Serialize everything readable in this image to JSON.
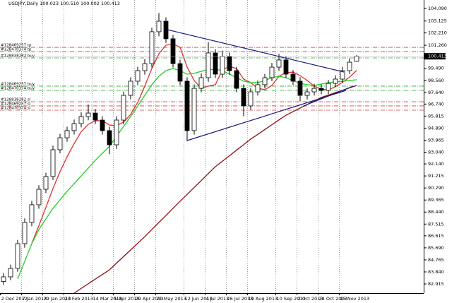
{
  "chart_data": {
    "type": "candlestick",
    "title": "USDJPY,Daily 100.023 100.510 100.002 100.413",
    "categories": [
      "2 Dec 2012",
      null,
      null,
      "7 Jan 2013",
      null,
      null,
      "29 Jan 2013",
      null,
      null,
      "20 Feb 2013",
      null,
      null,
      null,
      "14 Mar 2013",
      null,
      null,
      "5 Apr 2013",
      null,
      null,
      "29 Apr 2013",
      null,
      null,
      "21 May 2013",
      null,
      null,
      null,
      "12 Jun 2013",
      null,
      null,
      "4 Jul 2013",
      null,
      null,
      "26 Jul 2013",
      null,
      null,
      "19 Aug 2013",
      null,
      null,
      null,
      "10 Sep 2013",
      null,
      null,
      "2 Oct 2013",
      null,
      null,
      "24 Oct 2013",
      null,
      null,
      "15 Nov 2013",
      null,
      null
    ],
    "open": [
      83.1,
      83.46,
      84.11,
      86.01,
      87.64,
      89.0,
      90.19,
      91.17,
      93.23,
      94.15,
      94.7,
      95.24,
      95.78,
      96.05,
      95.51,
      94.7,
      93.61,
      95.51,
      97.41,
      98.5,
      99.31,
      99.85,
      102.3,
      103.11,
      101.76,
      99.85,
      98.5,
      94.7,
      97.95,
      98.77,
      100.67,
      99.04,
      100.4,
      99.31,
      97.95,
      96.6,
      97.68,
      98.23,
      98.77,
      99.58,
      100.13,
      99.04,
      98.5,
      97.41,
      97.68,
      97.95,
      97.79,
      98.33,
      98.66,
      99.31,
      100.023
    ],
    "high": [
      83.75,
      84.4,
      86.3,
      87.95,
      89.3,
      90.5,
      91.45,
      93.55,
      94.45,
      95.0,
      95.55,
      96.1,
      96.7,
      96.35,
      95.8,
      95.0,
      95.8,
      97.7,
      98.8,
      99.6,
      100.2,
      102.6,
      103.74,
      103.4,
      102.05,
      100.15,
      98.8,
      98.25,
      99.1,
      101.5,
      100.95,
      100.85,
      100.7,
      99.6,
      98.25,
      97.95,
      98.55,
      99.05,
      99.9,
      100.6,
      100.4,
      99.35,
      98.8,
      97.95,
      98.3,
      98.25,
      98.6,
      98.95,
      99.6,
      100.25,
      100.51
    ],
    "low": [
      82.85,
      83.2,
      83.85,
      85.7,
      87.35,
      88.7,
      89.9,
      90.9,
      92.95,
      93.85,
      94.4,
      94.95,
      95.5,
      95.2,
      94.4,
      92.9,
      93.3,
      95.2,
      97.1,
      98.2,
      99.0,
      99.55,
      101.95,
      101.45,
      99.55,
      98.2,
      93.9,
      94.4,
      97.65,
      98.45,
      98.75,
      98.75,
      99.0,
      97.65,
      95.8,
      96.3,
      97.4,
      97.95,
      98.5,
      99.3,
      98.75,
      98.2,
      96.95,
      97.1,
      97.4,
      97.5,
      97.5,
      98.05,
      98.4,
      99.05,
      100.002
    ],
    "close": [
      83.46,
      84.11,
      86.01,
      87.64,
      89.0,
      90.19,
      91.17,
      93.23,
      94.15,
      94.7,
      95.24,
      95.78,
      96.05,
      95.51,
      94.7,
      93.61,
      95.51,
      97.41,
      98.5,
      99.31,
      99.85,
      102.3,
      103.11,
      101.76,
      99.85,
      98.5,
      94.7,
      97.95,
      98.77,
      100.67,
      99.04,
      100.4,
      99.31,
      97.95,
      96.6,
      97.68,
      98.23,
      98.77,
      99.58,
      100.13,
      99.04,
      98.5,
      97.41,
      97.68,
      97.95,
      97.79,
      98.33,
      98.66,
      99.31,
      99.96,
      100.413
    ],
    "series": [
      {
        "color": "#e03030",
        "values": [
          null,
          null,
          null,
          null,
          86.04,
          87.39,
          88.8,
          90.25,
          91.55,
          92.69,
          93.7,
          94.62,
          95.18,
          95.46,
          95.46,
          95.13,
          95.08,
          95.35,
          95.95,
          96.87,
          98.12,
          99.47,
          100.61,
          101.27,
          101.37,
          101.1,
          99.58,
          98.55,
          97.95,
          98.12,
          98.23,
          99.37,
          99.64,
          99.47,
          98.66,
          98.39,
          97.95,
          97.85,
          98.17,
          98.88,
          99.15,
          99.2,
          98.93,
          98.55,
          98.12,
          97.87,
          97.83,
          98.08,
          98.41,
          98.81,
          99.33
        ]
      },
      {
        "color": "#22cc22",
        "values": [
          null,
          null,
          83.3,
          84.65,
          86.01,
          87.1,
          87.91,
          88.73,
          89.38,
          90.03,
          90.63,
          91.22,
          91.82,
          92.42,
          92.96,
          93.5,
          94.26,
          95.02,
          95.78,
          96.6,
          97.41,
          98.23,
          98.88,
          99.31,
          99.47,
          99.31,
          99.04,
          99.1,
          99.26,
          99.37,
          99.42,
          99.31,
          99.04,
          98.77,
          98.5,
          98.39,
          98.39,
          98.55,
          98.77,
          98.88,
          98.77,
          98.55,
          98.33,
          98.23,
          98.17,
          98.28,
          98.39,
          98.44,
          98.5,
          98.55,
          98.61
        ]
      },
      {
        "color": "#8b1010",
        "values": [
          null,
          null,
          null,
          null,
          null,
          null,
          null,
          null,
          null,
          null,
          82.21,
          82.57,
          82.93,
          83.29,
          83.64,
          84.0,
          84.51,
          85.02,
          85.53,
          86.04,
          86.55,
          87.1,
          87.64,
          88.18,
          88.73,
          89.27,
          89.8,
          90.33,
          90.86,
          91.4,
          91.93,
          92.35,
          92.77,
          93.2,
          93.62,
          94.05,
          94.41,
          94.78,
          95.15,
          95.52,
          95.89,
          96.16,
          96.43,
          96.71,
          96.98,
          97.25,
          97.43,
          97.62,
          97.8,
          97.99,
          98.17
        ]
      }
    ],
    "levels": [
      {
        "label": "#128469257 tp",
        "value": 101.1,
        "color": "#d04040"
      },
      {
        "label": "#128470374 tp",
        "value": 100.78,
        "color": "#d04040"
      },
      {
        "label": "#128838282 buy",
        "value": 100.29,
        "color": "#30a030"
      },
      {
        "label": "#128469257 buy",
        "value": 98.12,
        "color": "#30a030"
      },
      {
        "label": "#128470374 buy",
        "value": 97.79,
        "color": "#30a030"
      },
      {
        "label": "#128838282 sl",
        "value": 96.92,
        "color": "#d04040"
      },
      {
        "label": "#128469257 sl",
        "value": 96.6,
        "color": "#d04040"
      },
      {
        "label": "#128470374 sl",
        "value": 96.27,
        "color": "#d04040"
      }
    ],
    "last_price": 100.413,
    "ylim": [
      82.21,
      104.74
    ],
    "yticks": [
      {
        "value": 104.09,
        "label": "104.090"
      },
      103.125,
      {
        "value": 102.21,
        "label": "102.210"
      },
      {
        "value": 101.26,
        "label": "101.260"
      },
      {
        "value": 99.49,
        "label": "99.490"
      },
      {
        "value": 98.56,
        "label": "98.560"
      },
      {
        "value": 97.64,
        "label": "97.640"
      },
      {
        "value": 96.74,
        "label": "96.740"
      },
      95.815,
      {
        "value": 94.89,
        "label": "94.890"
      },
      93.965,
      {
        "value": 93.04,
        "label": "93.040"
      },
      {
        "value": 92.14,
        "label": "92.140"
      },
      91.215,
      {
        "value": 90.29,
        "label": "90.290"
      },
      89.365,
      {
        "value": 88.44,
        "label": "88.440"
      },
      87.515,
      86.615,
      {
        "value": 85.69,
        "label": "85.690"
      },
      84.765,
      {
        "value": 83.84,
        "label": "83.840"
      },
      82.915
    ],
    "grid": "vertical"
  }
}
